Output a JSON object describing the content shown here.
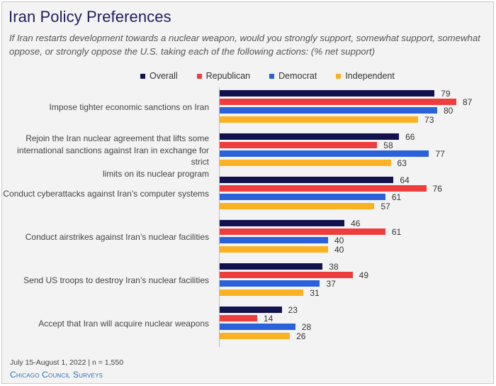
{
  "header": {
    "title": "Iran Policy Preferences",
    "subtitle": "If Iran restarts development towards a nuclear weapon, would you strongly support, somewhat support, somewhat oppose, or strongly oppose the U.S. taking each of the following actions: (% net support)"
  },
  "footer": {
    "note": "July 15-August 1, 2022 | n = 1,550",
    "source": "Chicago Council Surveys"
  },
  "chart_data": {
    "type": "bar",
    "orientation": "horizontal",
    "title": "Iran Policy Preferences",
    "xlabel": "",
    "ylabel": "",
    "xlim": [
      0,
      100
    ],
    "legend_position": "top",
    "categories": [
      [
        "Impose tighter economic sanctions on Iran"
      ],
      [
        "Rejoin the Iran nuclear agreement that lifts some",
        "international sanctions against Iran in exchange for strict",
        "limits on its nuclear program"
      ],
      [
        "Conduct cyberattacks against Iran’s computer systems"
      ],
      [
        "Conduct airstrikes against Iran’s nuclear facilities"
      ],
      [
        "Send US troops to destroy Iran’s nuclear facilities"
      ],
      [
        "Accept that Iran will acquire nuclear weapons"
      ]
    ],
    "series": [
      {
        "name": "Overall",
        "color": "#12124f",
        "values": [
          79,
          66,
          64,
          46,
          38,
          23
        ]
      },
      {
        "name": "Republican",
        "color": "#ee3d3d",
        "values": [
          87,
          58,
          76,
          61,
          49,
          14
        ]
      },
      {
        "name": "Democrat",
        "color": "#2b62d9",
        "values": [
          80,
          77,
          61,
          40,
          37,
          28
        ]
      },
      {
        "name": "Independent",
        "color": "#fbb124",
        "values": [
          73,
          63,
          57,
          40,
          31,
          26
        ]
      }
    ]
  }
}
